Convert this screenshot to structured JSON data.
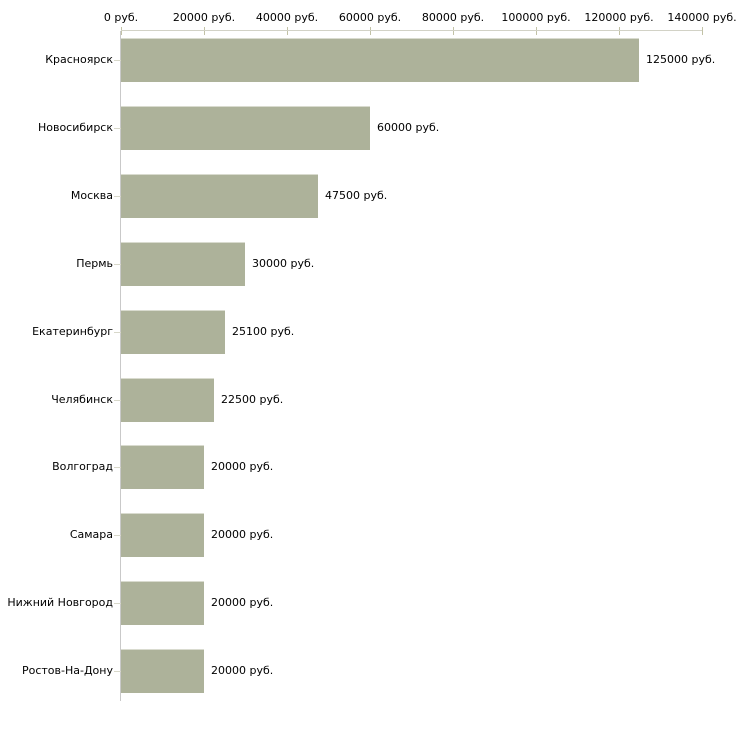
{
  "chart_data": {
    "type": "bar",
    "orientation": "horizontal",
    "title": "",
    "categories": [
      "Красноярск",
      "Новосибирск",
      "Москва",
      "Пермь",
      "Екатеринбург",
      "Челябинск",
      "Волгоград",
      "Самара",
      "Нижний Новгород",
      "Ростов-На-Дону"
    ],
    "values": [
      125000,
      60000,
      47500,
      30000,
      25100,
      22500,
      20000,
      20000,
      20000,
      20000
    ],
    "value_labels": [
      "125000 руб.",
      "60000 руб.",
      "47500 руб.",
      "30000 руб.",
      "25100 руб.",
      "22500 руб.",
      "20000 руб.",
      "20000 руб.",
      "20000 руб.",
      "20000 руб."
    ],
    "x_axis": {
      "position": "top",
      "max": 140000,
      "tick_values": [
        0,
        20000,
        40000,
        60000,
        80000,
        100000,
        120000,
        140000
      ],
      "tick_labels": [
        "0 руб.",
        "20000 руб.",
        "40000 руб.",
        "60000 руб.",
        "80000 руб.",
        "100000 руб.",
        "120000 руб.",
        "140000 руб."
      ]
    },
    "grid": false,
    "legend": null,
    "colors": {
      "bar_fill": "#adb29a",
      "bar_top_edge": "#d9dbcf",
      "x_axis_line": "#d2d2c6",
      "y_axis_line": "#c9c9c9",
      "x_tick": "#c2c2a6",
      "y_tick": "#d8d8ca",
      "text": "#000000",
      "background": "#ffffff"
    }
  }
}
